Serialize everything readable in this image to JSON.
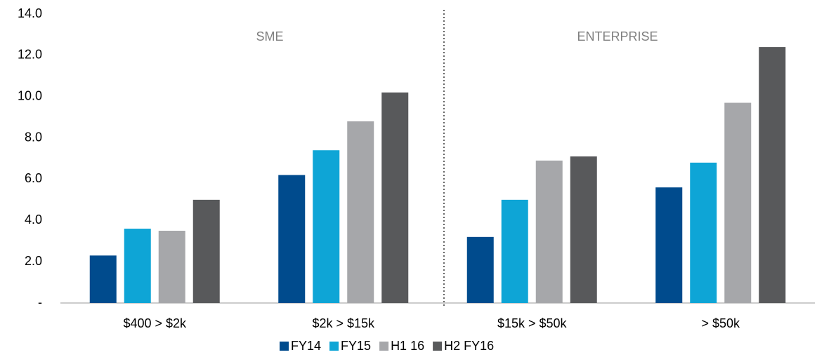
{
  "chart_data": {
    "type": "bar",
    "categories": [
      "$400 > $2k",
      "$2k > $15k",
      "$15k > $50k",
      "> $50k"
    ],
    "series": [
      {
        "name": "FY14",
        "color": "#004b8d",
        "values": [
          2.3,
          6.2,
          3.2,
          5.6
        ]
      },
      {
        "name": "FY15",
        "color": "#0ea5d6",
        "values": [
          3.6,
          7.4,
          5.0,
          6.8
        ]
      },
      {
        "name": "H1 16",
        "color": "#a6a7aa",
        "values": [
          3.5,
          8.8,
          6.9,
          9.7
        ]
      },
      {
        "name": "H2 FY16",
        "color": "#58595b",
        "values": [
          5.0,
          10.2,
          7.1,
          12.4
        ]
      }
    ],
    "annotations": [
      "SME",
      "ENTERPRISE"
    ],
    "ylim": [
      0,
      14
    ],
    "yticks": [
      {
        "value": 0,
        "label": "-"
      },
      {
        "value": 2,
        "label": "2.0"
      },
      {
        "value": 4,
        "label": "4.0"
      },
      {
        "value": 6,
        "label": "6.0"
      },
      {
        "value": 8,
        "label": "8.0"
      },
      {
        "value": 10,
        "label": "10.0"
      },
      {
        "value": 12,
        "label": "12.0"
      },
      {
        "value": 14,
        "label": "14.0"
      }
    ],
    "grid": false,
    "legend": "bottom"
  }
}
